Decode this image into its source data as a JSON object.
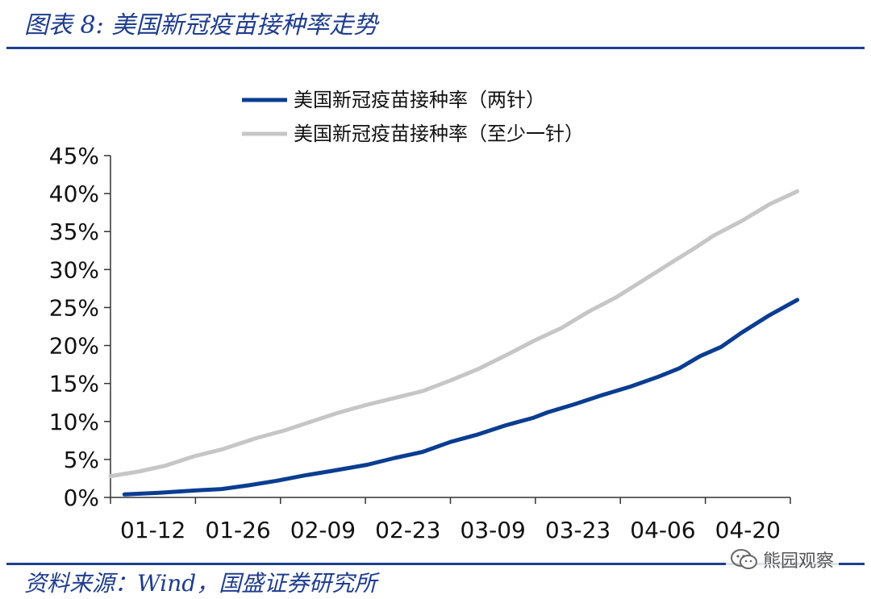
{
  "header": {
    "title": "图表 8:  美国新冠疫苗接种率走势"
  },
  "footer": {
    "source": "资料来源：Wind，国盛证券研究所"
  },
  "watermark": {
    "icon": "wechat-icon",
    "text": "熊园观察"
  },
  "colors": {
    "accent": "#1f3d8f",
    "two_dose": "#0b3d91",
    "one_dose": "#c6c6c6"
  },
  "chart_data": {
    "type": "line",
    "title": "",
    "xlabel": "",
    "ylabel": "",
    "ylim": [
      0,
      45
    ],
    "xlim": [
      "01-12",
      "04-20"
    ],
    "grid": false,
    "legend_position": "top",
    "x_tick_labels": [
      "01-12",
      "01-26",
      "02-09",
      "02-23",
      "03-09",
      "03-23",
      "04-06",
      "04-20"
    ],
    "y_ticks": [
      0,
      5,
      10,
      15,
      20,
      25,
      30,
      35,
      40,
      45
    ],
    "y_tick_labels": [
      "0%",
      "5%",
      "10%",
      "15%",
      "20%",
      "25%",
      "30%",
      "35%",
      "40%",
      "45%"
    ],
    "series": [
      {
        "name": "美国新冠疫苗接种率（两针）",
        "color": "#0b3d91",
        "points": [
          [
            "01-14",
            0.4
          ],
          [
            "01-19",
            0.6
          ],
          [
            "01-24",
            0.9
          ],
          [
            "01-28",
            1.1
          ],
          [
            "02-01",
            1.6
          ],
          [
            "02-05",
            2.2
          ],
          [
            "02-09",
            2.9
          ],
          [
            "02-13",
            3.5
          ],
          [
            "02-18",
            4.3
          ],
          [
            "02-22",
            5.2
          ],
          [
            "02-26",
            6.0
          ],
          [
            "03-02",
            7.3
          ],
          [
            "03-06",
            8.3
          ],
          [
            "03-10",
            9.5
          ],
          [
            "03-14",
            10.5
          ],
          [
            "03-16",
            11.2
          ],
          [
            "03-20",
            12.3
          ],
          [
            "03-24",
            13.5
          ],
          [
            "03-28",
            14.6
          ],
          [
            "04-01",
            15.9
          ],
          [
            "04-04",
            17.0
          ],
          [
            "04-07",
            18.6
          ],
          [
            "04-10",
            19.8
          ],
          [
            "04-13",
            21.7
          ],
          [
            "04-17",
            24.0
          ],
          [
            "04-21",
            26.0
          ]
        ]
      },
      {
        "name": "美国新冠疫苗接种率（至少一针）",
        "color": "#c6c6c6",
        "points": [
          [
            "01-12",
            2.8
          ],
          [
            "01-16",
            3.4
          ],
          [
            "01-20",
            4.2
          ],
          [
            "01-24",
            5.4
          ],
          [
            "01-28",
            6.3
          ],
          [
            "02-02",
            7.8
          ],
          [
            "02-06",
            8.8
          ],
          [
            "02-10",
            10.0
          ],
          [
            "02-14",
            11.2
          ],
          [
            "02-18",
            12.2
          ],
          [
            "02-22",
            13.1
          ],
          [
            "02-26",
            14.0
          ],
          [
            "03-02",
            15.4
          ],
          [
            "03-06",
            16.9
          ],
          [
            "03-10",
            18.7
          ],
          [
            "03-14",
            20.6
          ],
          [
            "03-18",
            22.3
          ],
          [
            "03-22",
            24.5
          ],
          [
            "03-26",
            26.4
          ],
          [
            "03-30",
            28.7
          ],
          [
            "04-03",
            31.0
          ],
          [
            "04-06",
            32.7
          ],
          [
            "04-09",
            34.5
          ],
          [
            "04-13",
            36.4
          ],
          [
            "04-17",
            38.6
          ],
          [
            "04-21",
            40.3
          ]
        ]
      }
    ]
  }
}
